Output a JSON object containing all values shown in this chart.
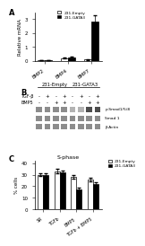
{
  "panel_A": {
    "ylabel": "Relative mRNA",
    "categories": [
      "BMP2",
      "BMP4",
      "BMP7"
    ],
    "empty_values": [
      0.05,
      0.18,
      0.08
    ],
    "gata3_values": [
      0.05,
      0.22,
      2.8
    ],
    "empty_err": [
      0.02,
      0.04,
      0.02
    ],
    "gata3_err": [
      0.02,
      0.05,
      0.5
    ],
    "ylim": [
      0,
      3.5
    ],
    "yticks": [
      0,
      1,
      2,
      3
    ],
    "legend_labels": [
      "231-Empty",
      "231-GATA3"
    ],
    "colors": [
      "white",
      "black"
    ],
    "bar_edge": "black"
  },
  "panel_B": {
    "col_labels": [
      "231-Empty",
      "231-GATA3"
    ],
    "row1": "TGF-β",
    "row2": "BMP5",
    "band_labels": [
      "p-Smad1/5/8",
      "Smad 1",
      "β-Actin"
    ],
    "n_lanes": 8,
    "tgfb_pattern": [
      "-",
      "+",
      "-",
      "+",
      "-",
      "+",
      "-",
      "+"
    ],
    "bmp5_pattern": [
      "-",
      "-",
      "+",
      "+",
      "-",
      "-",
      "+",
      "+"
    ],
    "band_intensity": [
      [
        0.55,
        0.55,
        0.55,
        0.55,
        0.7,
        0.7,
        0.3,
        0.3
      ],
      [
        0.55,
        0.55,
        0.55,
        0.55,
        0.55,
        0.55,
        0.55,
        0.55
      ],
      [
        0.55,
        0.55,
        0.55,
        0.55,
        0.55,
        0.55,
        0.55,
        0.55
      ]
    ]
  },
  "panel_C": {
    "title": "S-phase",
    "ylabel": "% cells",
    "categories": [
      "SR",
      "TGFb",
      "BMP5",
      "TGFb + BMP5"
    ],
    "empty_values": [
      30,
      33,
      28,
      26
    ],
    "gata3_values": [
      30,
      32,
      17,
      22
    ],
    "empty_err": [
      1.5,
      2.0,
      1.5,
      1.5
    ],
    "gata3_err": [
      1.5,
      1.5,
      2.0,
      1.5
    ],
    "ylim": [
      0,
      42
    ],
    "yticks": [
      0,
      10,
      20,
      30,
      40
    ],
    "legend_labels": [
      "231-Empty",
      "231-GATA3"
    ],
    "colors": [
      "white",
      "black"
    ],
    "bar_edge": "black"
  },
  "figure_bg": "white"
}
